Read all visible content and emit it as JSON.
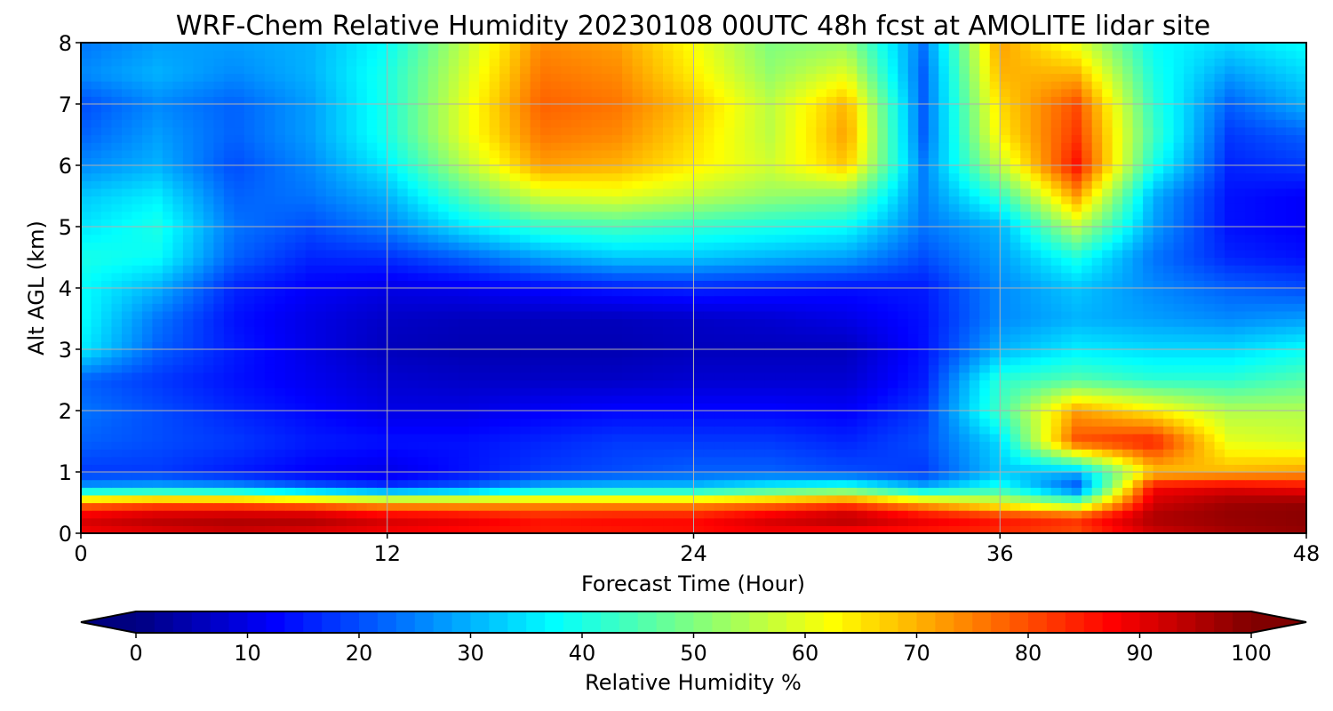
{
  "chart_data": {
    "type": "heatmap",
    "title": "WRF-Chem Relative Humidity 20230108 00UTC 48h fcst at AMOLITE lidar site",
    "xlabel": "Forecast Time (Hour)",
    "ylabel": "Alt AGL (km)",
    "xlim": [
      0,
      48
    ],
    "ylim": [
      0,
      8
    ],
    "xticks": [
      "0",
      "12",
      "24",
      "36",
      "48"
    ],
    "yticks": [
      "0",
      "1",
      "2",
      "3",
      "4",
      "5",
      "6",
      "7",
      "8"
    ],
    "grid": true,
    "colormap": "jet",
    "colorbar": {
      "label": "Relative Humidity %",
      "range": [
        0,
        100
      ],
      "ticks": [
        "0",
        "10",
        "20",
        "30",
        "40",
        "50",
        "60",
        "70",
        "80",
        "90",
        "100"
      ],
      "extend": "both",
      "orientation": "horizontal"
    },
    "x": [
      0,
      3,
      6,
      9,
      12,
      15,
      18,
      21,
      24,
      27,
      30,
      33,
      36,
      39,
      42,
      45,
      48
    ],
    "y": [
      0,
      0.25,
      0.5,
      0.75,
      1,
      1.5,
      2,
      2.5,
      3,
      3.5,
      4,
      4.5,
      5,
      5.5,
      6,
      6.5,
      7,
      7.5,
      8
    ],
    "z": [
      [
        88,
        90,
        92,
        90,
        88,
        86,
        85,
        85,
        86,
        88,
        86,
        85,
        83,
        80,
        92,
        96,
        98
      ],
      [
        92,
        95,
        96,
        96,
        92,
        90,
        86,
        87,
        87,
        92,
        96,
        90,
        86,
        83,
        96,
        98,
        99
      ],
      [
        75,
        78,
        78,
        75,
        70,
        70,
        72,
        72,
        72,
        75,
        80,
        70,
        60,
        50,
        92,
        97,
        98
      ],
      [
        28,
        30,
        28,
        22,
        18,
        22,
        30,
        32,
        32,
        38,
        42,
        30,
        40,
        20,
        88,
        90,
        88
      ],
      [
        18,
        18,
        15,
        12,
        10,
        14,
        18,
        20,
        22,
        22,
        20,
        18,
        32,
        30,
        68,
        70,
        72
      ],
      [
        22,
        20,
        18,
        15,
        14,
        14,
        16,
        18,
        18,
        18,
        16,
        20,
        34,
        80,
        85,
        60,
        58
      ],
      [
        24,
        20,
        16,
        13,
        10,
        10,
        12,
        13,
        13,
        13,
        12,
        18,
        44,
        72,
        64,
        55,
        55
      ],
      [
        22,
        18,
        14,
        11,
        8,
        7,
        7,
        7,
        8,
        8,
        8,
        15,
        42,
        46,
        42,
        42,
        46
      ],
      [
        36,
        22,
        15,
        10,
        6,
        5,
        5,
        5,
        6,
        6,
        6,
        14,
        30,
        36,
        34,
        34,
        38
      ],
      [
        38,
        24,
        14,
        10,
        7,
        6,
        6,
        6,
        7,
        8,
        10,
        14,
        26,
        30,
        28,
        26,
        28
      ],
      [
        38,
        30,
        16,
        12,
        10,
        11,
        13,
        15,
        16,
        15,
        14,
        15,
        26,
        32,
        26,
        22,
        20
      ],
      [
        40,
        38,
        22,
        16,
        17,
        22,
        28,
        32,
        32,
        30,
        28,
        20,
        28,
        40,
        24,
        16,
        14
      ],
      [
        35,
        40,
        24,
        20,
        25,
        35,
        42,
        44,
        42,
        40,
        38,
        24,
        30,
        56,
        28,
        14,
        12
      ],
      [
        32,
        36,
        22,
        24,
        30,
        45,
        58,
        60,
        56,
        52,
        50,
        25,
        42,
        72,
        30,
        14,
        12
      ],
      [
        26,
        30,
        20,
        26,
        36,
        55,
        72,
        70,
        64,
        58,
        68,
        25,
        56,
        86,
        40,
        16,
        18
      ],
      [
        22,
        28,
        22,
        28,
        40,
        60,
        76,
        74,
        66,
        56,
        72,
        22,
        64,
        82,
        44,
        18,
        22
      ],
      [
        20,
        26,
        22,
        28,
        40,
        60,
        78,
        76,
        68,
        56,
        70,
        22,
        66,
        80,
        42,
        22,
        30
      ],
      [
        26,
        30,
        26,
        30,
        40,
        58,
        76,
        74,
        64,
        52,
        60,
        22,
        70,
        70,
        40,
        28,
        34
      ],
      [
        24,
        28,
        28,
        30,
        38,
        56,
        74,
        72,
        62,
        50,
        52,
        24,
        72,
        60,
        38,
        34,
        38
      ]
    ]
  }
}
